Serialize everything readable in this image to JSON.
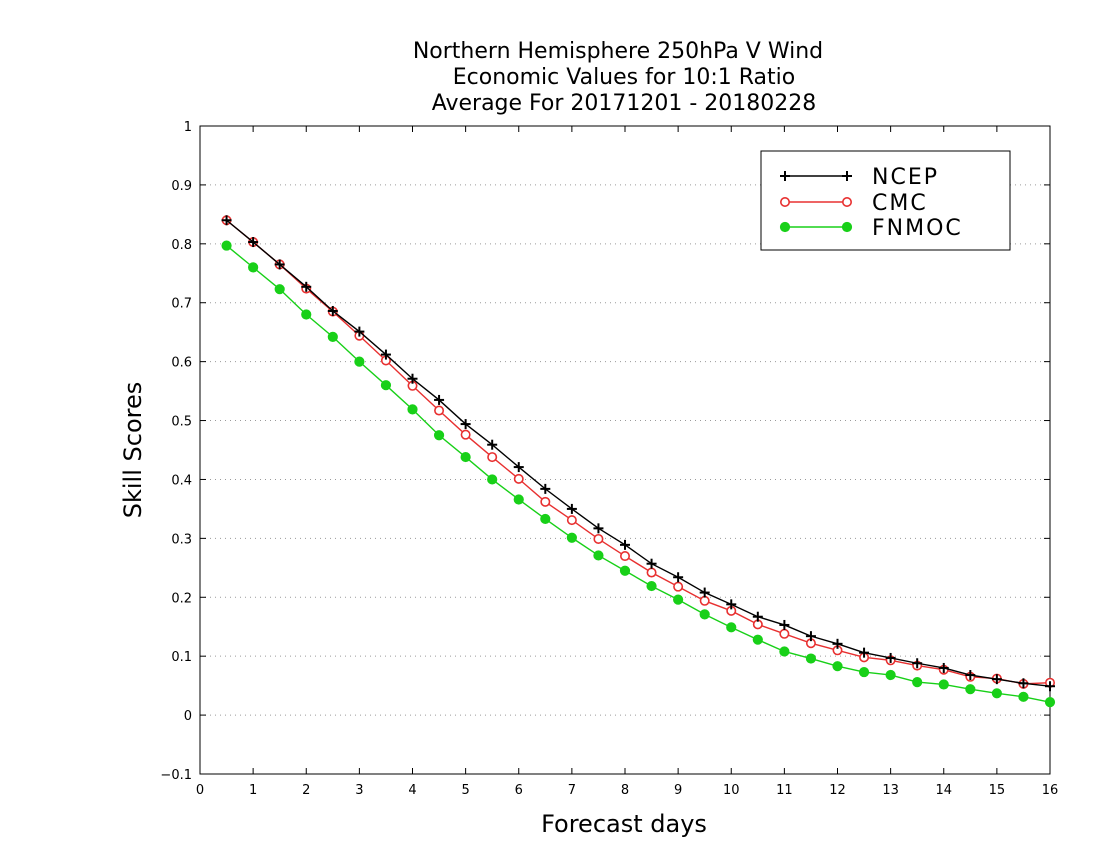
{
  "chart_data": {
    "type": "line",
    "title_lines": [
      "Northern Hemisphere 250hPa V Wind",
      "Economic Values for 10:1 Ratio",
      "Average For 20171201 - 20180228"
    ],
    "xlabel": "Forecast days",
    "ylabel": "Skill Scores",
    "xlim": [
      0,
      16
    ],
    "ylim": [
      -0.1,
      1
    ],
    "x_ticks": [
      "0",
      "1",
      "2",
      "3",
      "4",
      "5",
      "6",
      "7",
      "8",
      "9",
      "10",
      "11",
      "12",
      "13",
      "14",
      "15",
      "16"
    ],
    "y_ticks": [
      "−0.1",
      "0",
      "0.1",
      "0.2",
      "0.3",
      "0.4",
      "0.5",
      "0.6",
      "0.7",
      "0.8",
      "0.9",
      "1"
    ],
    "y_tick_values": [
      -0.1,
      0,
      0.1,
      0.2,
      0.3,
      0.4,
      0.5,
      0.6,
      0.7,
      0.8,
      0.9,
      1.0
    ],
    "grid": true,
    "legend_position": "top-right",
    "x": [
      0.5,
      1,
      1.5,
      2,
      2.5,
      3,
      3.5,
      4,
      4.5,
      5,
      5.5,
      6,
      6.5,
      7,
      7.5,
      8,
      8.5,
      9,
      9.5,
      10,
      10.5,
      11,
      11.5,
      12,
      12.5,
      13,
      13.5,
      14,
      14.5,
      15,
      15.5,
      16
    ],
    "series": [
      {
        "name": "NCEP",
        "color": "#000000",
        "marker": "plus",
        "values": [
          0.84,
          0.803,
          0.765,
          0.727,
          0.686,
          0.651,
          0.612,
          0.571,
          0.535,
          0.494,
          0.459,
          0.421,
          0.384,
          0.35,
          0.317,
          0.289,
          0.257,
          0.234,
          0.208,
          0.188,
          0.167,
          0.153,
          0.134,
          0.121,
          0.106,
          0.097,
          0.088,
          0.08,
          0.068,
          0.061,
          0.054,
          0.049
        ]
      },
      {
        "name": "CMC",
        "color": "#e83030",
        "marker": "circle-open",
        "values": [
          0.84,
          0.803,
          0.765,
          0.724,
          0.685,
          0.644,
          0.602,
          0.559,
          0.517,
          0.476,
          0.438,
          0.401,
          0.362,
          0.331,
          0.299,
          0.27,
          0.242,
          0.218,
          0.194,
          0.177,
          0.154,
          0.138,
          0.122,
          0.11,
          0.098,
          0.093,
          0.084,
          0.077,
          0.065,
          0.062,
          0.053,
          0.055
        ]
      },
      {
        "name": "FNMOC",
        "color": "#18d018",
        "marker": "circle-filled",
        "values": [
          0.797,
          0.76,
          0.723,
          0.68,
          0.642,
          0.6,
          0.56,
          0.519,
          0.475,
          0.438,
          0.4,
          0.366,
          0.333,
          0.301,
          0.271,
          0.245,
          0.219,
          0.196,
          0.171,
          0.149,
          0.128,
          0.108,
          0.096,
          0.083,
          0.073,
          0.068,
          0.056,
          0.052,
          0.044,
          0.037,
          0.031,
          0.022
        ]
      }
    ]
  }
}
